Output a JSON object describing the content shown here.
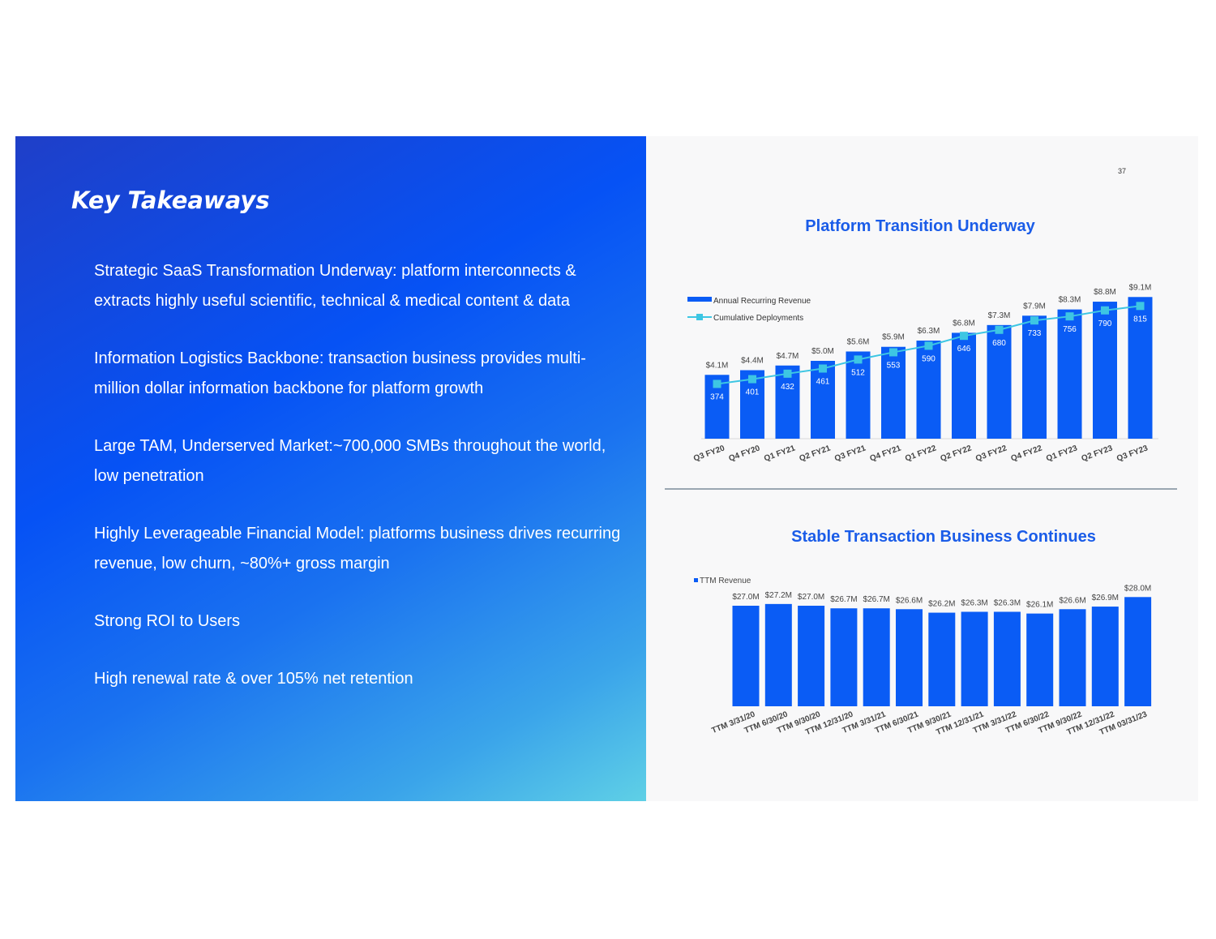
{
  "left": {
    "title": "Key Takeaways",
    "bullets": [
      "Strategic SaaS Transformation Underway: platform interconnects & extracts highly useful scientific, technical & medical content & data",
      "Information Logistics Backbone: transaction business provides multi-million dollar information backbone for platform growth",
      "Large TAM, Underserved Market:~700,000 SMBs throughout the world, low penetration",
      "Highly Leverageable Financial Model: platforms business drives recurring revenue, low churn, ~80%+ gross margin",
      "Strong ROI to Users",
      "High renewal rate & over 105% net retention"
    ]
  },
  "right": {
    "page_number": "37"
  },
  "colors": {
    "bar": "#0a5cf5",
    "line": "#3dc6e3",
    "title_blue": "#1a5ce8"
  },
  "chart_data": [
    {
      "type": "bar",
      "title": "Platform Transition Underway",
      "categories": [
        "Q3 FY20",
        "Q4 FY20",
        "Q1 FY21",
        "Q2 FY21",
        "Q3 FY21",
        "Q4 FY21",
        "Q1 FY22",
        "Q2 FY22",
        "Q3 FY22",
        "Q4 FY22",
        "Q1 FY23",
        "Q2 FY23",
        "Q3 FY23"
      ],
      "series": [
        {
          "name": "Annual Recurring Revenue",
          "kind": "bar",
          "values": [
            4.1,
            4.4,
            4.7,
            5.0,
            5.6,
            5.9,
            6.3,
            6.8,
            7.3,
            7.9,
            8.3,
            8.8,
            9.1
          ],
          "labels": [
            "$4.1M",
            "$4.4M",
            "$4.7M",
            "$5.0M",
            "$5.6M",
            "$5.9M",
            "$6.3M",
            "$6.8M",
            "$7.3M",
            "$7.9M",
            "$8.3M",
            "$8.8M",
            "$9.1M"
          ]
        },
        {
          "name": "Cumulative Deployments",
          "kind": "line",
          "values": [
            374,
            401,
            432,
            461,
            512,
            553,
            590,
            646,
            680,
            733,
            756,
            790,
            815
          ],
          "labels": [
            "374",
            "401",
            "432",
            "461",
            "512",
            "553",
            "590",
            "646",
            "680",
            "733",
            "756",
            "790",
            "815"
          ]
        }
      ],
      "legend": "top-left",
      "grid": false
    },
    {
      "type": "bar",
      "title": "Stable Transaction Business Continues",
      "categories": [
        "TTM 3/31/20",
        "TTM 6/30/20",
        "TTM 9/30/20",
        "TTM 12/31/20",
        "TTM 3/31/21",
        "TTM 6/30/21",
        "TTM 9/30/21",
        "TTM 12/31/21",
        "TTM 3/31/22",
        "TTM 6/30/22",
        "TTM 9/30/22",
        "TTM 12/31/22",
        "TTM 03/31/23"
      ],
      "series": [
        {
          "name": "TTM Revenue",
          "values": [
            27.0,
            27.2,
            27.0,
            26.7,
            26.7,
            26.6,
            26.2,
            26.3,
            26.3,
            26.1,
            26.6,
            26.9,
            28.0
          ],
          "labels": [
            "$27.0M",
            "$27.2M",
            "$27.0M",
            "$26.7M",
            "$26.7M",
            "$26.6M",
            "$26.2M",
            "$26.3M",
            "$26.3M",
            "$26.1M",
            "$26.6M",
            "$26.9M",
            "$28.0M"
          ]
        }
      ],
      "legend": "top-left",
      "grid": false
    }
  ]
}
